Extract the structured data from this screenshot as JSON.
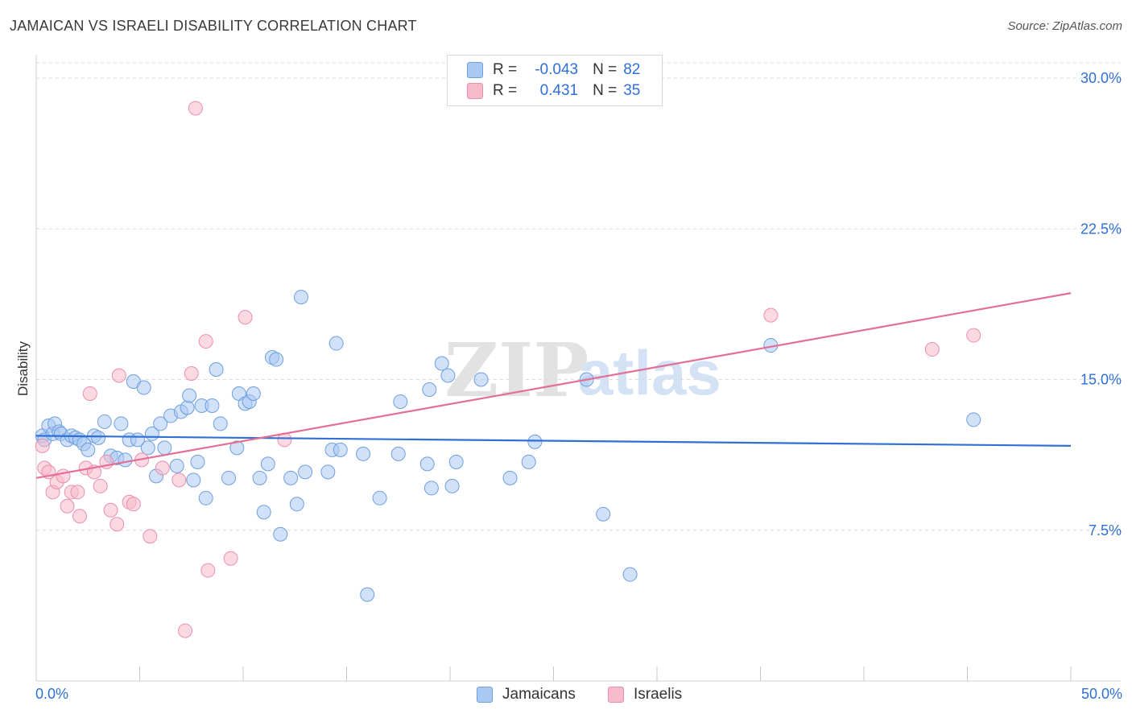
{
  "title": "JAMAICAN VS ISRAELI DISABILITY CORRELATION CHART",
  "source": "Source: ZipAtlas.com",
  "colors": {
    "jamaicans_fill": "#a9c8f2",
    "jamaicans_stroke": "#6f9fde",
    "jamaicans_line": "#2f6fd6",
    "israelis_fill": "#f7b9cc",
    "israelis_stroke": "#ea8fab",
    "israelis_line": "#e46f96",
    "axis_value": "#2f6fd6",
    "grid": "#dcdcdc"
  },
  "legend": {
    "rows": [
      {
        "r_label": "R =",
        "r_value": "-0.043",
        "n_label": "N =",
        "n_value": "82"
      },
      {
        "r_label": "R =",
        "r_value": "0.431",
        "n_label": "N =",
        "n_value": "35"
      }
    ]
  },
  "bottom_legend": [
    "Jamaicans",
    "Israelis"
  ],
  "watermark": {
    "zip": "ZIP",
    "atlas": "atlas"
  },
  "chart_data": {
    "type": "scatter",
    "title": "JAMAICAN VS ISRAELI DISABILITY CORRELATION CHART",
    "ylabel": "Disability",
    "xlabel": "",
    "xlim": [
      0,
      50
    ],
    "ylim": [
      0,
      31
    ],
    "x_tick_labels": {
      "left": "0.0%",
      "right": "50.0%"
    },
    "y_ticks": [
      {
        "value": 7.5,
        "label": "7.5%"
      },
      {
        "value": 15.0,
        "label": "15.0%"
      },
      {
        "value": 22.5,
        "label": "22.5%"
      },
      {
        "value": 30.0,
        "label": "30.0%"
      }
    ],
    "x_minor_ticks": [
      5,
      10,
      15,
      20,
      25,
      30,
      35,
      40,
      45,
      50
    ],
    "series": [
      {
        "name": "Jamaicans",
        "trend": {
          "x": [
            0,
            50
          ],
          "y": [
            12.2,
            11.7
          ]
        },
        "points": [
          [
            0.3,
            12.2
          ],
          [
            0.4,
            12.0
          ],
          [
            0.6,
            12.7
          ],
          [
            0.8,
            12.3
          ],
          [
            0.9,
            12.8
          ],
          [
            1.1,
            12.4
          ],
          [
            1.2,
            12.3
          ],
          [
            1.5,
            12.0
          ],
          [
            1.7,
            12.2
          ],
          [
            1.9,
            12.1
          ],
          [
            2.1,
            12.0
          ],
          [
            2.3,
            11.8
          ],
          [
            2.5,
            11.5
          ],
          [
            2.8,
            12.2
          ],
          [
            3.0,
            12.1
          ],
          [
            3.3,
            12.9
          ],
          [
            3.6,
            11.2
          ],
          [
            3.9,
            11.1
          ],
          [
            4.1,
            12.8
          ],
          [
            4.3,
            11.0
          ],
          [
            4.5,
            12.0
          ],
          [
            4.7,
            14.9
          ],
          [
            4.9,
            12.0
          ],
          [
            5.2,
            14.6
          ],
          [
            5.4,
            11.6
          ],
          [
            5.6,
            12.3
          ],
          [
            5.8,
            10.2
          ],
          [
            6.0,
            12.8
          ],
          [
            6.2,
            11.6
          ],
          [
            6.5,
            13.2
          ],
          [
            6.8,
            10.7
          ],
          [
            7.0,
            13.4
          ],
          [
            7.3,
            13.6
          ],
          [
            7.4,
            14.2
          ],
          [
            7.6,
            10.0
          ],
          [
            7.8,
            10.9
          ],
          [
            8.0,
            13.7
          ],
          [
            8.2,
            9.1
          ],
          [
            8.5,
            13.7
          ],
          [
            8.7,
            15.5
          ],
          [
            8.9,
            12.8
          ],
          [
            9.3,
            10.1
          ],
          [
            9.7,
            11.6
          ],
          [
            9.8,
            14.3
          ],
          [
            10.1,
            13.8
          ],
          [
            10.3,
            13.9
          ],
          [
            10.5,
            14.3
          ],
          [
            10.8,
            10.1
          ],
          [
            11.0,
            8.4
          ],
          [
            11.2,
            10.8
          ],
          [
            11.4,
            16.1
          ],
          [
            11.6,
            16.0
          ],
          [
            11.8,
            7.3
          ],
          [
            12.3,
            10.1
          ],
          [
            12.6,
            8.8
          ],
          [
            12.8,
            19.1
          ],
          [
            13.0,
            10.4
          ],
          [
            14.1,
            10.4
          ],
          [
            14.3,
            11.5
          ],
          [
            14.5,
            16.8
          ],
          [
            14.7,
            11.5
          ],
          [
            15.8,
            11.3
          ],
          [
            16.0,
            4.3
          ],
          [
            16.6,
            9.1
          ],
          [
            17.5,
            11.3
          ],
          [
            17.6,
            13.9
          ],
          [
            18.9,
            10.8
          ],
          [
            19.0,
            14.5
          ],
          [
            19.1,
            9.6
          ],
          [
            19.6,
            15.8
          ],
          [
            19.9,
            15.2
          ],
          [
            20.1,
            9.7
          ],
          [
            20.3,
            10.9
          ],
          [
            21.5,
            15.0
          ],
          [
            22.9,
            10.1
          ],
          [
            23.8,
            10.9
          ],
          [
            24.1,
            11.9
          ],
          [
            26.6,
            15.0
          ],
          [
            27.4,
            8.3
          ],
          [
            28.7,
            5.3
          ],
          [
            35.5,
            16.7
          ],
          [
            45.3,
            13.0
          ]
        ]
      },
      {
        "name": "Israelis",
        "trend": {
          "x": [
            0,
            50
          ],
          "y": [
            10.1,
            19.3
          ]
        },
        "points": [
          [
            0.3,
            11.7
          ],
          [
            0.4,
            10.6
          ],
          [
            0.6,
            10.4
          ],
          [
            0.8,
            9.4
          ],
          [
            1.0,
            9.9
          ],
          [
            1.3,
            10.2
          ],
          [
            1.5,
            8.7
          ],
          [
            1.7,
            9.4
          ],
          [
            2.0,
            9.4
          ],
          [
            2.1,
            8.2
          ],
          [
            2.4,
            10.6
          ],
          [
            2.6,
            14.3
          ],
          [
            2.8,
            10.4
          ],
          [
            3.1,
            9.7
          ],
          [
            3.4,
            10.9
          ],
          [
            3.6,
            8.5
          ],
          [
            3.9,
            7.8
          ],
          [
            4.0,
            15.2
          ],
          [
            4.5,
            8.9
          ],
          [
            4.7,
            8.8
          ],
          [
            5.1,
            11.0
          ],
          [
            5.5,
            7.2
          ],
          [
            6.1,
            10.6
          ],
          [
            6.9,
            10.0
          ],
          [
            7.5,
            15.3
          ],
          [
            7.7,
            28.5
          ],
          [
            8.2,
            16.9
          ],
          [
            8.3,
            5.5
          ],
          [
            9.4,
            6.1
          ],
          [
            10.1,
            18.1
          ],
          [
            12.0,
            12.0
          ],
          [
            35.5,
            18.2
          ],
          [
            7.2,
            2.5
          ],
          [
            43.3,
            16.5
          ],
          [
            45.3,
            17.2
          ]
        ]
      }
    ]
  }
}
